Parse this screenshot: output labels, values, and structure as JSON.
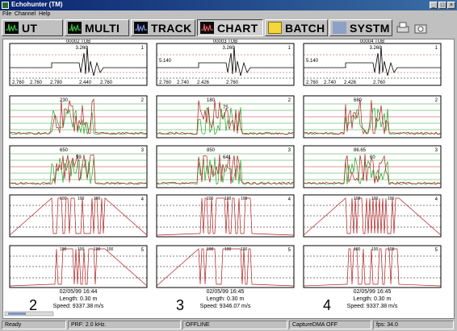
{
  "window": {
    "title": "Echohunter (TM)",
    "controls": [
      "_",
      "□",
      "×"
    ]
  },
  "menu": [
    "File",
    "Channel",
    "Help"
  ],
  "toolbar": {
    "buttons": [
      {
        "label": "UT",
        "icon": "ut-waveform-icon"
      },
      {
        "label": "MULTI",
        "icon": "multi-waveform-icon"
      },
      {
        "label": "TRACK",
        "icon": "track-waveform-icon"
      },
      {
        "label": "CHART",
        "icon": "chart-waveform-icon",
        "active": true
      },
      {
        "label": "BATCH",
        "icon": "folder-icon"
      },
      {
        "label": "SYSTM",
        "icon": "systm-icon"
      }
    ],
    "extra_icons": [
      "printer-icon",
      "camera-icon"
    ]
  },
  "columns": [
    {
      "tube": "00002 TUB",
      "number": "2",
      "date": "02/05/99  16:44",
      "length": "Length: 0.30 m",
      "speed": "Speed: 9337.38 m/s",
      "panels": [
        {
          "index": "1",
          "peak": "3.260",
          "left": "",
          "ticks": [
            "2.760",
            "2.760",
            "2.780",
            "2.440",
            "2.760"
          ]
        },
        {
          "index": "2",
          "peak": "230",
          "extra": ""
        },
        {
          "index": "3",
          "peak": "650",
          "extra": "59"
        },
        {
          "index": "4",
          "labels": [
            "100",
            "100",
            "100"
          ]
        },
        {
          "index": "5",
          "labels": [
            "100",
            "100",
            "100",
            "100"
          ]
        }
      ]
    },
    {
      "tube": "00003 TUB",
      "number": "3",
      "date": "02/05/99  16:45",
      "length": "Length: 0.30 m",
      "speed": "Speed: 9346.07 m/s",
      "panels": [
        {
          "index": "1",
          "peak": "3.260",
          "left": "5.140",
          "ticks": [
            "2.760",
            "2.740",
            "2.426",
            "2.760"
          ]
        },
        {
          "index": "2",
          "peak": "180",
          "extra": "75"
        },
        {
          "index": "3",
          "peak": "850",
          "extra": "641"
        },
        {
          "index": "4",
          "labels": [
            "100",
            "100",
            "100"
          ]
        },
        {
          "index": "5",
          "labels": [
            "100",
            "100",
            "100"
          ]
        }
      ]
    },
    {
      "tube": "00004 TUB",
      "number": "4",
      "date": "02/05/99  16:45",
      "length": "Length: 0.30 m",
      "speed": "Speed: 9337.38 m/s",
      "panels": [
        {
          "index": "1",
          "peak": "3.260",
          "left": "5.140",
          "ticks": [
            "2.760",
            "2.740",
            "2.426",
            "2.760"
          ]
        },
        {
          "index": "2",
          "peak": "680",
          "extra": ""
        },
        {
          "index": "3",
          "peak": "86.65",
          "extra": "60"
        },
        {
          "index": "4",
          "labels": [
            "100",
            "100",
            "100"
          ]
        },
        {
          "index": "5",
          "labels": [
            "100",
            "100",
            "100"
          ]
        }
      ]
    }
  ],
  "status": {
    "ready": "Ready",
    "prf": "PRF: 2.0 kHz.",
    "online": "OFFLINE",
    "capture": "CaptureDMA OFF",
    "fps": "fps: 34.0"
  },
  "colors": {
    "titlebar": "#0a2470",
    "window": "#c0c0c0",
    "plot_red": "#b02020",
    "plot_green": "#2aa02a",
    "plot_black": "#000000",
    "gridline_green": "#2aa02a",
    "gridline_red": "#c03030"
  }
}
